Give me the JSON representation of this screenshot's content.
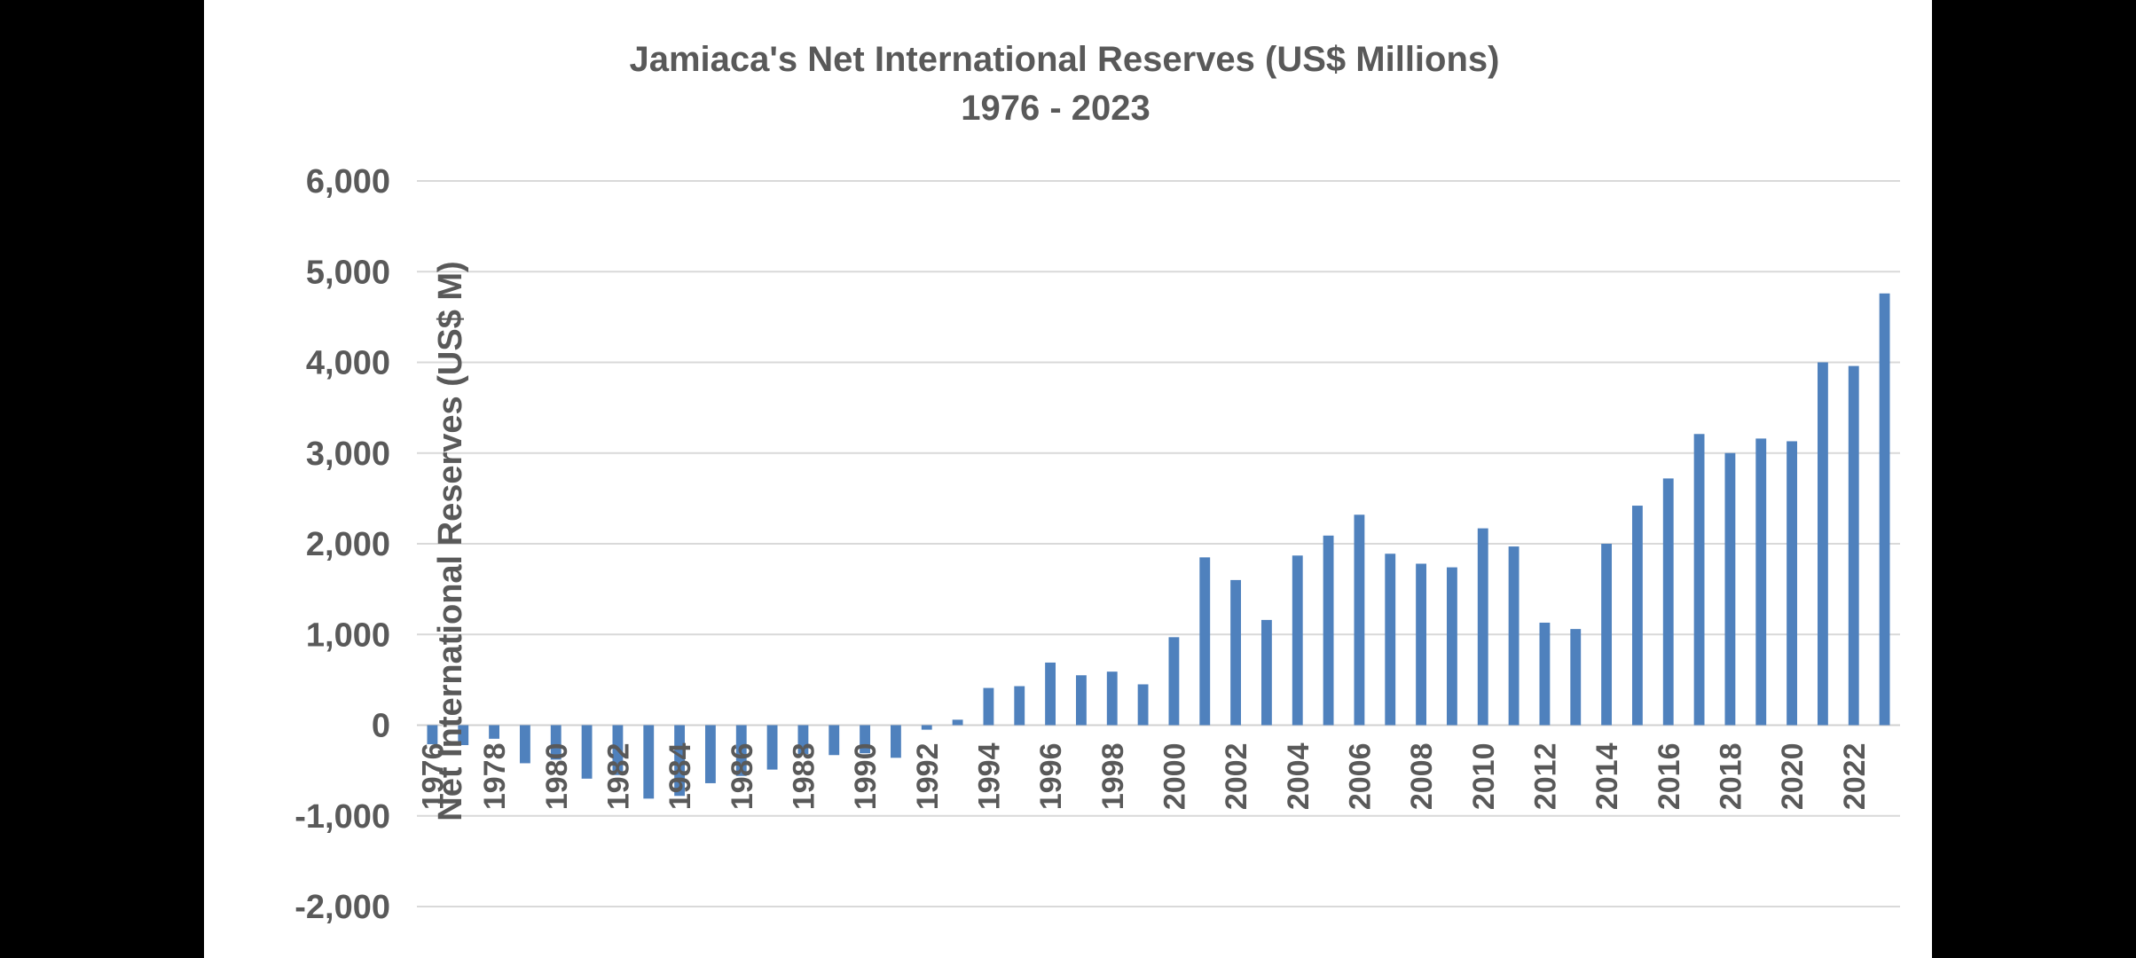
{
  "chart_data": {
    "type": "bar",
    "title": "Jamiaca's Net International Reserves (US$ Millions)",
    "subtitle": "1976 - 2023",
    "xlabel": "",
    "ylabel": "Net International Reserves  (US$ M)",
    "ylim": [
      -2000,
      6000
    ],
    "yticks": [
      6000,
      5000,
      4000,
      3000,
      2000,
      1000,
      0,
      -1000,
      -2000
    ],
    "ytick_labels": [
      "6,000",
      "5,000",
      "4,000",
      "3,000",
      "2,000",
      "1,000",
      "0",
      "-1,000",
      "-2,000"
    ],
    "grid": true,
    "legend": "none",
    "bar_color": "#4f81bd",
    "categories": [
      "1976",
      "1977",
      "1978",
      "1979",
      "1980",
      "1981",
      "1982",
      "1983",
      "1984",
      "1985",
      "1986",
      "1987",
      "1988",
      "1989",
      "1990",
      "1991",
      "1992",
      "1993",
      "1994",
      "1995",
      "1996",
      "1997",
      "1998",
      "1999",
      "2000",
      "2001",
      "2002",
      "2003",
      "2004",
      "2005",
      "2006",
      "2007",
      "2008",
      "2009",
      "2010",
      "2011",
      "2012",
      "2013",
      "2014",
      "2015",
      "2016",
      "2017",
      "2018",
      "2019",
      "2020",
      "2021",
      "2022",
      "2023"
    ],
    "x_tick_labels": [
      "1976",
      "1978",
      "1980",
      "1982",
      "1984",
      "1986",
      "1988",
      "1990",
      "1992",
      "1994",
      "1996",
      "1998",
      "2000",
      "2002",
      "2004",
      "2006",
      "2008",
      "2010",
      "2012",
      "2014",
      "2016",
      "2018",
      "2020",
      "2022"
    ],
    "values": [
      -210,
      -220,
      -150,
      -420,
      -380,
      -590,
      -550,
      -810,
      -780,
      -640,
      -560,
      -490,
      -320,
      -330,
      -310,
      -360,
      -50,
      60,
      410,
      430,
      690,
      550,
      590,
      450,
      970,
      1850,
      1600,
      1160,
      1870,
      2090,
      2320,
      1890,
      1780,
      1740,
      2170,
      1970,
      1130,
      1060,
      2000,
      2420,
      2720,
      3210,
      3000,
      3160,
      3130,
      4000,
      3960,
      4760
    ]
  }
}
